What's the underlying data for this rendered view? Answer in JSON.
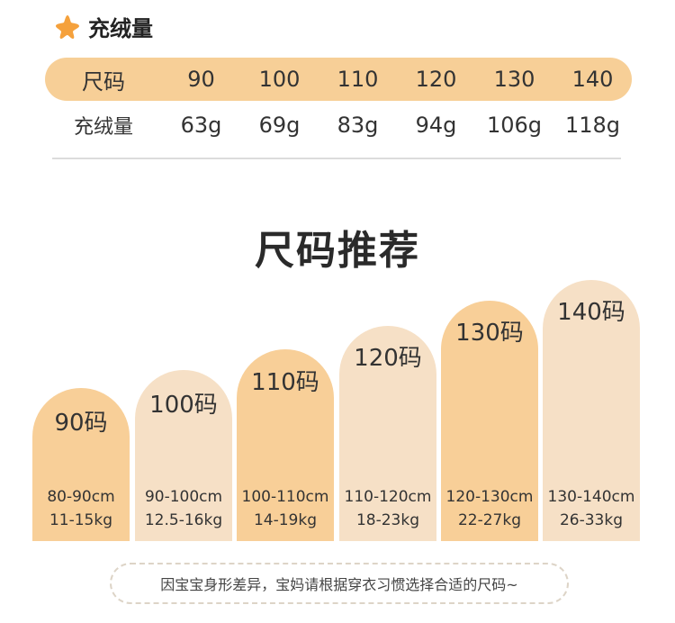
{
  "fill_section": {
    "title": "充绒量",
    "table": {
      "header_label": "尺码",
      "sizes": [
        "90",
        "100",
        "110",
        "120",
        "130",
        "140"
      ],
      "row_label": "充绒量",
      "values": [
        "63g",
        "69g",
        "83g",
        "94g",
        "106g",
        "118g"
      ]
    }
  },
  "recommend": {
    "title": "尺码推荐",
    "items": [
      {
        "size": "90码",
        "height": "80-90cm",
        "weight": "11-15kg",
        "color": "#f8cf98"
      },
      {
        "size": "100码",
        "height": "90-100cm",
        "weight": "12.5-16kg",
        "color": "#f6e0c6"
      },
      {
        "size": "110码",
        "height": "100-110cm",
        "weight": "14-19kg",
        "color": "#f8cf98"
      },
      {
        "size": "120码",
        "height": "110-120cm",
        "weight": "18-23kg",
        "color": "#f6e0c6"
      },
      {
        "size": "130码",
        "height": "120-130cm",
        "weight": "22-27kg",
        "color": "#f8cf98"
      },
      {
        "size": "140码",
        "height": "130-140cm",
        "weight": "26-33kg",
        "color": "#f6e0c6"
      }
    ]
  },
  "tip": "因宝宝身形差异，宝妈请根据穿衣习惯选择合适的尺码~",
  "colors": {
    "accent": "#f7cf97",
    "star": "#f5a13c"
  }
}
